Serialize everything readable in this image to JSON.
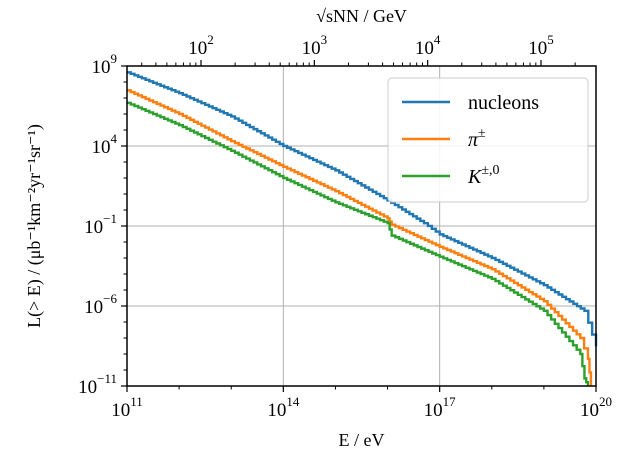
{
  "chart_data": {
    "type": "line",
    "x_scale": "log",
    "y_scale": "log",
    "xlim": [
      100000000000.0,
      1e+20
    ],
    "ylim": [
      1e-11,
      1000000000.0
    ],
    "grid": true,
    "legend_position": "top-right",
    "xlabel": "E / eV",
    "ylabel": "L(> E) / (μb⁻¹km⁻²yr⁻¹sr⁻¹)",
    "top_xlabel": "√sNN / GeV",
    "x_ticks": [
      {
        "value": 100000000000.0,
        "base": "10",
        "exp": "11"
      },
      {
        "value": 100000000000000.0,
        "base": "10",
        "exp": "14"
      },
      {
        "value": 1e+17,
        "base": "10",
        "exp": "17"
      },
      {
        "value": 1e+20,
        "base": "10",
        "exp": "20"
      }
    ],
    "y_ticks": [
      {
        "value": 1e-11,
        "base": "10",
        "exp": "−11"
      },
      {
        "value": 1e-06,
        "base": "10",
        "exp": "−6"
      },
      {
        "value": 0.1,
        "base": "10",
        "exp": "−1"
      },
      {
        "value": 10000.0,
        "base": "10",
        "exp": "4"
      },
      {
        "value": 1000000000.0,
        "base": "10",
        "exp": "9"
      }
    ],
    "top_ticks": [
      {
        "value": 100.0,
        "base": "10",
        "exp": "2"
      },
      {
        "value": 1000.0,
        "base": "10",
        "exp": "3"
      },
      {
        "value": 10000.0,
        "base": "10",
        "exp": "4"
      },
      {
        "value": 100000.0,
        "base": "10",
        "exp": "5"
      }
    ],
    "series": [
      {
        "name": "nucleons",
        "color": "#1f77b4",
        "x": [
          100000000000.0,
          1000000000000.0,
          10000000000000.0,
          100000000000000.0,
          1000000000000000.0,
          1e+16,
          5e+16,
          1e+17,
          1e+18,
          1e+19,
          6e+19,
          1e+20
        ],
        "y": [
          400000000.0,
          20000000.0,
          700000.0,
          10000.0,
          300.0,
          4,
          0.15,
          0.03,
          0.001,
          2e-05,
          5e-07,
          3e-09
        ]
      },
      {
        "name": "π±",
        "legend_main": "π",
        "legend_sup": "±",
        "color": "#ff7f0e",
        "x": [
          100000000000.0,
          1000000000000.0,
          10000000000000.0,
          100000000000000.0,
          1000000000000000.0,
          1e+16,
          1.2e+16,
          1e+17,
          1e+18,
          1e+19,
          5e+19,
          7e+19,
          8e+19
        ],
        "y": [
          30000000.0,
          1000000.0,
          20000.0,
          500.0,
          15,
          0.3,
          0.12,
          0.005,
          0.0002,
          2e-06,
          1e-08,
          5e-10,
          1e-11
        ]
      },
      {
        "name": "K±,0",
        "legend_main": "K",
        "legend_sup": "±,0",
        "color": "#2ca02c",
        "x": [
          100000000000.0,
          1000000000000.0,
          10000000000000.0,
          100000000000000.0,
          1000000000000000.0,
          1e+16,
          1.2e+16,
          1e+17,
          1e+18,
          1e+19,
          5e+19,
          6e+19,
          7e+19
        ],
        "y": [
          5000000.0,
          200000.0,
          5000.0,
          100.0,
          3,
          0.15,
          0.025,
          0.0012,
          5e-05,
          5e-07,
          1e-09,
          3e-11,
          1e-11
        ]
      }
    ]
  }
}
